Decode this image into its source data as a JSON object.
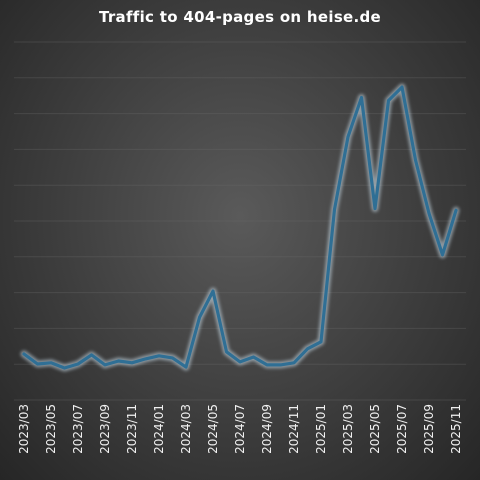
{
  "colors": {
    "line": "#2f6f95",
    "glow": "#cfe3f0"
  },
  "chart_data": {
    "type": "line",
    "title": "Traffic to 404-pages on heise.de",
    "xlabel": "",
    "ylabel": "",
    "grid": true,
    "legend": "none",
    "ylim": [
      0,
      100
    ],
    "x_tick_labels": [
      "2023/03",
      "2023/05",
      "2023/07",
      "2023/09",
      "2023/11",
      "2024/01",
      "2024/03",
      "2024/05",
      "2024/07",
      "2024/09",
      "2024/11",
      "2025/01",
      "2025/03",
      "2025/05",
      "2025/07",
      "2025/09",
      "2025/11"
    ],
    "x": [
      "2023/03",
      "2023/04",
      "2023/05",
      "2023/06",
      "2023/07",
      "2023/08",
      "2023/09",
      "2023/10",
      "2023/11",
      "2023/12",
      "2024/01",
      "2024/02",
      "2024/03",
      "2024/04",
      "2024/05",
      "2024/06",
      "2024/07",
      "2024/08",
      "2024/09",
      "2024/10",
      "2024/11",
      "2024/12",
      "2025/01",
      "2025/02",
      "2025/03",
      "2025/04",
      "2025/05",
      "2025/06",
      "2025/07",
      "2025/08",
      "2025/09",
      "2025/10",
      "2025/11"
    ],
    "series": [
      {
        "values": [
          4.6,
          1.3,
          1.7,
          0.0,
          1.3,
          4.3,
          1.0,
          2.3,
          1.7,
          3.0,
          4.0,
          3.3,
          0.3,
          16.6,
          25.2,
          5.3,
          2.0,
          3.6,
          1.0,
          1.0,
          1.7,
          6.3,
          8.6,
          52.0,
          75.8,
          88.7,
          52.3,
          87.7,
          92.1,
          68.2,
          50.7,
          37.1,
          51.7
        ]
      }
    ]
  }
}
